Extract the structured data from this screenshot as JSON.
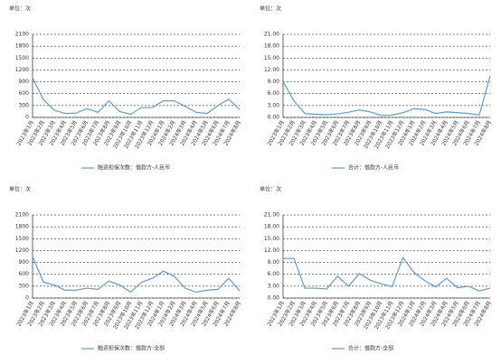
{
  "chart_data": [
    {
      "type": "line",
      "unit_label": "单位：次",
      "categories": [
        "2023年1月",
        "2023年2月",
        "2023年3月",
        "2023年4月",
        "2023年5月",
        "2023年6月",
        "2023年7月",
        "2023年8月",
        "2023年9月",
        "2023年10月",
        "2023年11月",
        "2023年12月",
        "2024年1月",
        "2024年2月",
        "2024年3月",
        "2024年4月",
        "2024年5月",
        "2024年6月",
        "2024年7月",
        "2024年8月"
      ],
      "series": [
        {
          "name": "融资担保次数：借款方-人民币",
          "color": "#5b9bd5",
          "values": [
            1000,
            450,
            180,
            100,
            110,
            220,
            130,
            420,
            150,
            80,
            250,
            250,
            420,
            420,
            280,
            130,
            100,
            300,
            460,
            200
          ]
        }
      ],
      "ylim": [
        0,
        2100
      ],
      "yticks": [
        0,
        300,
        600,
        900,
        1200,
        1500,
        1800,
        2100
      ],
      "grid": true
    },
    {
      "type": "line",
      "unit_label": "单位：次",
      "categories": [
        "2023年1月",
        "2023年2月",
        "2023年3月",
        "2023年4月",
        "2023年5月",
        "2023年6月",
        "2023年7月",
        "2023年8月",
        "2023年9月",
        "2023年10月",
        "2023年11月",
        "2023年12月",
        "2024年1月",
        "2024年2月",
        "2024年3月",
        "2024年4月",
        "2024年5月",
        "2024年6月",
        "2024年7月",
        "2024年8月"
      ],
      "series": [
        {
          "name": "合计：借款方-人民币",
          "color": "#5b9bd5",
          "values": [
            9.0,
            4.2,
            1.0,
            0.8,
            0.7,
            0.9,
            1.3,
            1.9,
            1.4,
            0.5,
            0.6,
            1.2,
            2.2,
            2.0,
            1.0,
            1.4,
            1.2,
            1.0,
            0.6,
            10.5
          ]
        }
      ],
      "ylim": [
        0,
        21
      ],
      "yticks": [
        {
          "value": 0,
          "label": "0.00"
        },
        {
          "value": 3,
          "label": "3.00"
        },
        {
          "value": 6,
          "label": "6.00"
        },
        {
          "value": 9,
          "label": "9.00"
        },
        {
          "value": 12,
          "label": "12.00"
        },
        {
          "value": 15,
          "label": "15.00"
        },
        {
          "value": 18,
          "label": "18.00"
        },
        {
          "value": 21,
          "label": "21.00"
        }
      ],
      "grid": true
    },
    {
      "type": "line",
      "unit_label": "单位：次",
      "categories": [
        "2023年1月",
        "2023年2月",
        "2023年3月",
        "2023年4月",
        "2023年5月",
        "2023年6月",
        "2023年7月",
        "2023年8月",
        "2023年9月",
        "2023年10月",
        "2023年11月",
        "2023年12月",
        "2024年1月",
        "2024年2月",
        "2024年3月",
        "2024年4月",
        "2024年5月",
        "2024年6月",
        "2024年7月",
        "2024年8月"
      ],
      "series": [
        {
          "name": "融资担保次数：借款方-全部",
          "color": "#5b9bd5",
          "values": [
            1050,
            400,
            330,
            200,
            200,
            250,
            220,
            430,
            330,
            150,
            400,
            500,
            680,
            550,
            250,
            150,
            200,
            220,
            500,
            180
          ]
        }
      ],
      "ylim": [
        0,
        2100
      ],
      "yticks": [
        0,
        300,
        600,
        900,
        1200,
        1500,
        1800,
        2100
      ],
      "grid": true
    },
    {
      "type": "line",
      "unit_label": "单位：次",
      "categories": [
        "2023年1月",
        "2023年2月",
        "2023年3月",
        "2023年4月",
        "2023年5月",
        "2023年6月",
        "2023年7月",
        "2023年8月",
        "2023年9月",
        "2023年10月",
        "2023年11月",
        "2023年12月",
        "2024年1月",
        "2024年2月",
        "2024年3月",
        "2024年4月",
        "2024年5月",
        "2024年6月",
        "2024年7月",
        "2024年8月"
      ],
      "series": [
        {
          "name": "合计：借款方-全部",
          "color": "#5b9bd5",
          "values": [
            10.0,
            10.0,
            2.5,
            2.5,
            2.3,
            5.5,
            3.0,
            6.2,
            4.5,
            3.6,
            2.9,
            10.2,
            6.5,
            4.4,
            2.8,
            5.0,
            2.6,
            3.0,
            1.8,
            2.5
          ]
        }
      ],
      "ylim": [
        0,
        21
      ],
      "yticks": [
        {
          "value": 0,
          "label": "0.00"
        },
        {
          "value": 3,
          "label": "3.00"
        },
        {
          "value": 6,
          "label": "6.00"
        },
        {
          "value": 9,
          "label": "9.00"
        },
        {
          "value": 12,
          "label": "12.00"
        },
        {
          "value": 15,
          "label": "15.00"
        },
        {
          "value": 18,
          "label": "18.00"
        },
        {
          "value": 21,
          "label": "21.00"
        }
      ],
      "grid": true
    }
  ]
}
